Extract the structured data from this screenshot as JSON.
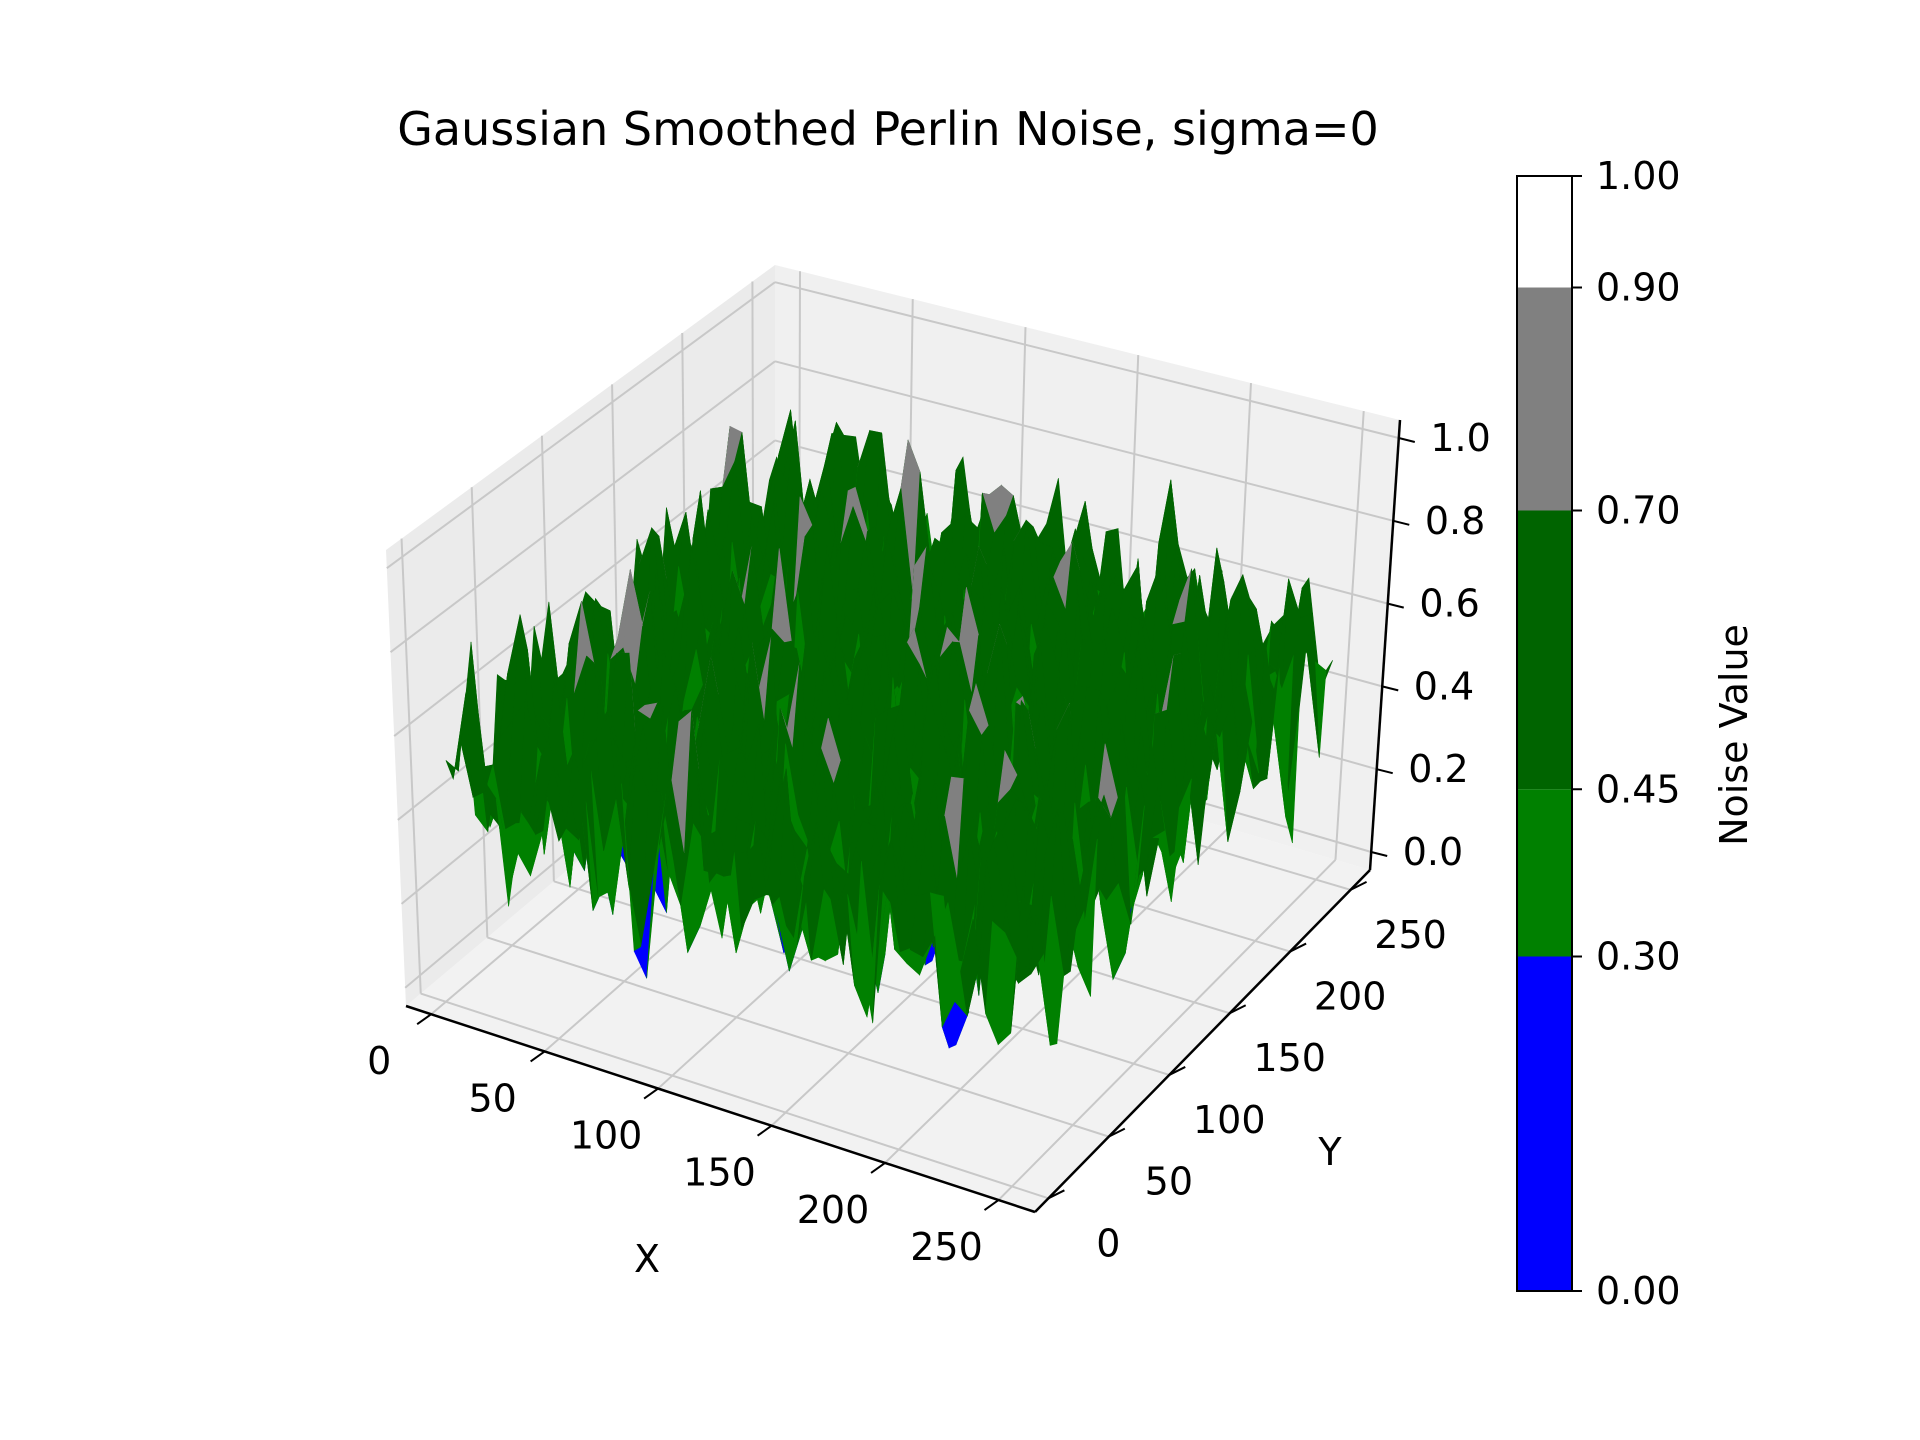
{
  "chart_data": {
    "type": "surface3d",
    "title": "Gaussian Smoothed Perlin Noise, sigma=0",
    "xlabel": "X",
    "ylabel": "Y",
    "zlabel": "",
    "xlim": [
      0,
      255
    ],
    "ylim": [
      0,
      255
    ],
    "zlim": [
      0,
      1
    ],
    "x_ticks": [
      0,
      50,
      100,
      150,
      200,
      250
    ],
    "x_tick_labels": [
      "0",
      "50",
      "100",
      "150",
      "200",
      "250"
    ],
    "y_ticks": [
      0,
      50,
      100,
      150,
      200,
      250
    ],
    "y_tick_labels": [
      "0",
      "50",
      "100",
      "150",
      "200",
      "250"
    ],
    "z_ticks": [
      0.0,
      0.2,
      0.4,
      0.6,
      0.8,
      1.0
    ],
    "z_tick_labels": [
      "0.0",
      "0.2",
      "0.4",
      "0.6",
      "0.8",
      "1.0"
    ],
    "grid": true,
    "surface_summary": {
      "grid_size": 256,
      "typical_range": [
        0.3,
        0.7
      ],
      "min_approx": 0.05,
      "max_approx": 0.9
    },
    "colorbar": {
      "label": "Noise Value",
      "boundaries": [
        0.0,
        0.3,
        0.45,
        0.7,
        0.9,
        1.0
      ],
      "tick_labels": [
        "0.00",
        "0.30",
        "0.45",
        "0.70",
        "0.90",
        "1.00"
      ],
      "colors": [
        "#0000ff",
        "#008000",
        "#006400",
        "#808080",
        "#ffffff"
      ]
    }
  }
}
